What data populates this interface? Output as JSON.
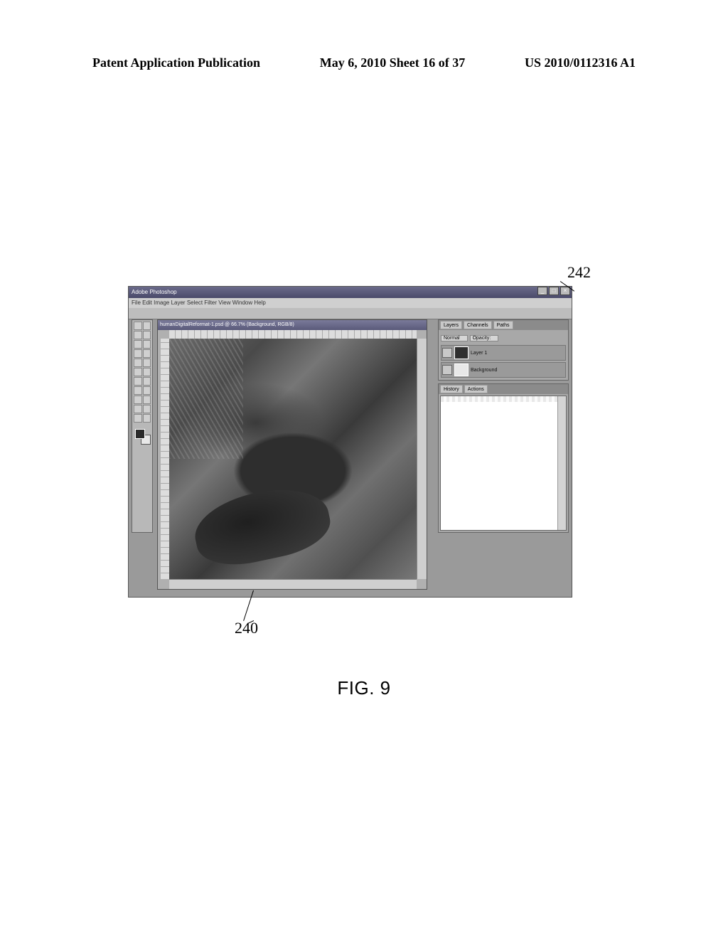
{
  "header": {
    "left": "Patent Application Publication",
    "center": "May 6, 2010  Sheet 16 of 37",
    "right": "US 2010/0112316 A1"
  },
  "refs": {
    "r242": "242",
    "r240": "240"
  },
  "caption": "FIG. 9",
  "app": {
    "title": "Adobe Photoshop",
    "menu": "File  Edit  Image  Layer  Select  Filter  View  Window  Help",
    "doc_title": "humanDigitalReformat-1.psd @ 66.7% (Background, RGB/8)",
    "panels": {
      "layers": {
        "tabs": [
          "Layers",
          "Channels",
          "Paths"
        ],
        "mode": "Normal",
        "opacity_label": "Opacity:",
        "rows": [
          {
            "label": "Layer 1"
          },
          {
            "label": "Background"
          }
        ]
      },
      "history": {
        "tabs": [
          "History",
          "Actions"
        ]
      }
    },
    "window_controls": {
      "min": "_",
      "max": "□",
      "close": "×"
    }
  }
}
